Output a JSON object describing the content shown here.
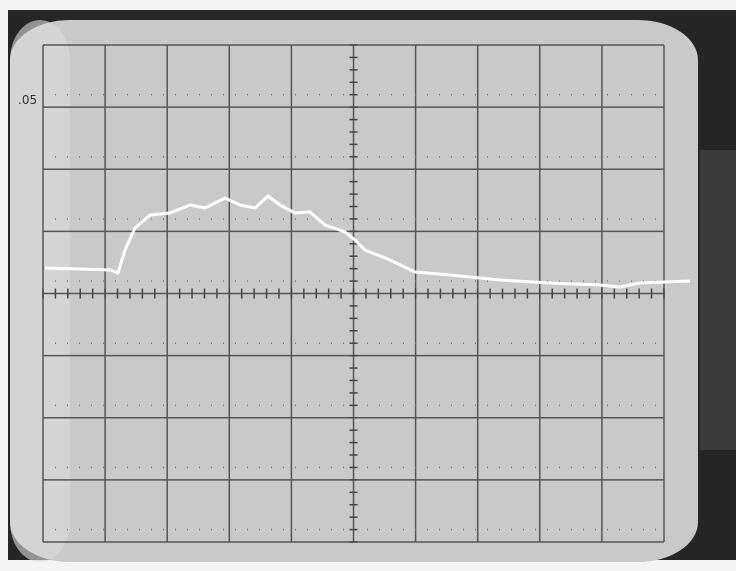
{
  "screen": {
    "left_mark": ".05"
  }
}
